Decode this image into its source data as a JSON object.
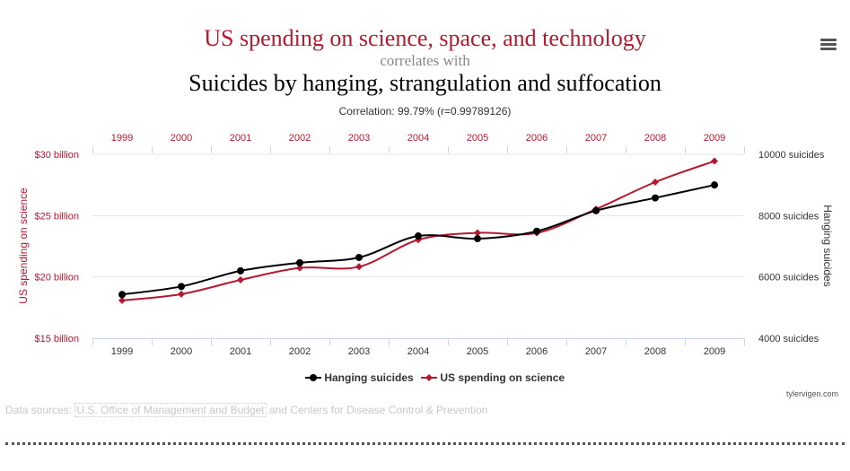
{
  "header": {
    "title_line1": "US spending on science, space, and technology",
    "title_line2": "correlates with",
    "title_line3": "Suicides by hanging, strangulation and suffocation",
    "correlation": "Correlation: 99.79% (r=0.99789126)"
  },
  "menu": {
    "icon": "hamburger-menu-icon"
  },
  "colors": {
    "red": "#b3192f",
    "black": "#000000",
    "grid": "#e6e6e6"
  },
  "chart_data": {
    "type": "line",
    "x": [
      "1999",
      "2000",
      "2001",
      "2002",
      "2003",
      "2004",
      "2005",
      "2006",
      "2007",
      "2008",
      "2009"
    ],
    "series": [
      {
        "name": "Hanging suicides",
        "axis": "right",
        "color": "#000000",
        "marker": "circle",
        "values": [
          5427,
          5688,
          6198,
          6462,
          6635,
          7336,
          7248,
          7491,
          8161,
          8578,
          9000
        ]
      },
      {
        "name": "US spending on science",
        "axis": "left",
        "color": "#b3192f",
        "marker": "diamond",
        "values": [
          18.079,
          18.594,
          19.753,
          20.734,
          20.831,
          23.029,
          23.597,
          23.584,
          25.525,
          27.731,
          29.449
        ]
      }
    ],
    "left_axis": {
      "label": "US spending on science",
      "range": [
        15,
        30
      ],
      "ticks": [
        {
          "v": 15,
          "label": "$15 billion"
        },
        {
          "v": 20,
          "label": "$20 billion"
        },
        {
          "v": 25,
          "label": "$25 billion"
        },
        {
          "v": 30,
          "label": "$30 billion"
        }
      ]
    },
    "right_axis": {
      "label": "Hanging suicides",
      "range": [
        4000,
        10000
      ],
      "ticks": [
        {
          "v": 4000,
          "label": "4000 suicides"
        },
        {
          "v": 6000,
          "label": "6000 suicides"
        },
        {
          "v": 8000,
          "label": "8000 suicides"
        },
        {
          "v": 10000,
          "label": "10000 suicides"
        }
      ]
    },
    "grid": true,
    "legend_position": "bottom-center"
  },
  "footer": {
    "credit": "tylervigen.com",
    "sources_prefix": "Data sources: ",
    "sources_link": "U.S. Office of Management and Budget",
    "sources_suffix": " and Centers for Disease Control & Prevention"
  }
}
